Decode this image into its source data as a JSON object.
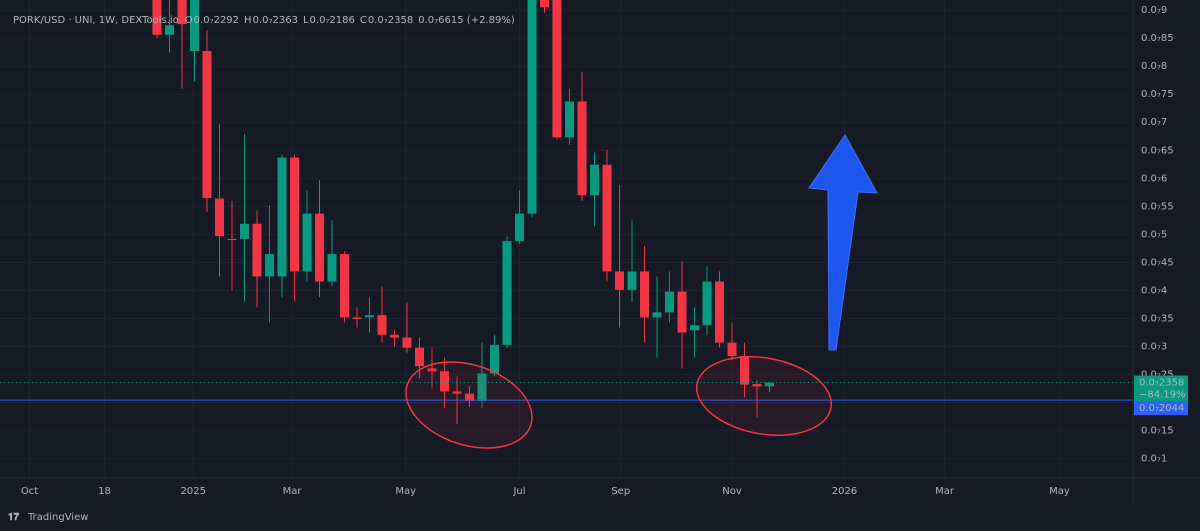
{
  "chart_data": {
    "type": "candlestick",
    "header": {
      "symbol": "PORK/USD · UNI, 1W, DEXTools.io",
      "ohlc": [
        {
          "key": "O",
          "text": "0.0₇2292"
        },
        {
          "key": "H",
          "text": "0.0₇2363"
        },
        {
          "key": "L",
          "text": "0.0₇2186"
        },
        {
          "key": "C",
          "text": "0.0₇2358"
        }
      ],
      "change": "0.0₇6615 (+2.89%)"
    },
    "up_color": "#089981",
    "down_color": "#f23645",
    "open": [
      9.3e-08,
      8.56e-08,
      9.4e-08,
      8.27e-08,
      8.27e-08,
      5.64e-08,
      4.92e-08,
      4.92e-08,
      5.19e-08,
      4.25e-08,
      4.25e-08,
      6.37e-08,
      4.34e-08,
      5.37e-08,
      4.16e-08,
      4.65e-08,
      3.52e-08,
      3.52e-08,
      3.56e-08,
      3.21e-08,
      3.16e-08,
      2.98e-08,
      2.61e-08,
      2.56e-08,
      2.2e-08,
      2.16e-08,
      2.03e-08,
      2.52e-08,
      3.03e-08,
      4.88e-08,
      5.37e-08,
      9.4e-08,
      9.3e-08,
      6.73e-08,
      7.37e-08,
      5.7e-08,
      6.24e-08,
      4.34e-08,
      4.01e-08,
      4.34e-08,
      3.52e-08,
      3.61e-08,
      3.98e-08,
      3.29e-08,
      3.38e-08,
      4.16e-08,
      3.07e-08,
      2.83e-08,
      2.33e-08,
      2.292e-08
    ],
    "high": [
      9.5e-08,
      9.2e-08,
      9.6e-08,
      9.5e-08,
      8.64e-08,
      6.97e-08,
      5.6e-08,
      6.79e-08,
      5.43e-08,
      5.52e-08,
      6.42e-08,
      6.42e-08,
      5.79e-08,
      5.97e-08,
      5.25e-08,
      4.7e-08,
      3.7e-08,
      3.88e-08,
      4.07e-08,
      3.3e-08,
      3.79e-08,
      3.16e-08,
      2.98e-08,
      2.8e-08,
      2.47e-08,
      2.3e-08,
      3.07e-08,
      3.21e-08,
      4.97e-08,
      5.79e-08,
      9.6e-08,
      9.6e-08,
      9.5e-08,
      7.6e-08,
      7.9e-08,
      6.46e-08,
      6.51e-08,
      5.88e-08,
      5.25e-08,
      4.79e-08,
      4.25e-08,
      4.34e-08,
      4.52e-08,
      3.7e-08,
      4.43e-08,
      4.34e-08,
      3.43e-08,
      3.07e-08,
      2.4e-08,
      2.363e-08
    ],
    "low": [
      8.5e-08,
      8.24e-08,
      7.6e-08,
      7.73e-08,
      5.4e-08,
      4.25e-08,
      4e-08,
      3.8e-08,
      3.7e-08,
      3.43e-08,
      3.88e-08,
      3.8e-08,
      4.16e-08,
      3.88e-08,
      4.07e-08,
      3.43e-08,
      3.34e-08,
      3.25e-08,
      3.07e-08,
      3e-08,
      2.89e-08,
      2.43e-08,
      2.25e-08,
      1.9e-08,
      1.62e-08,
      1.92e-08,
      1.9e-08,
      2.47e-08,
      2.98e-08,
      4.83e-08,
      5.3e-08,
      8.95e-08,
      6.7e-08,
      6.6e-08,
      5.6e-08,
      5.15e-08,
      4.16e-08,
      3.34e-08,
      3.8e-08,
      3.07e-08,
      2.8e-08,
      3.43e-08,
      2.61e-08,
      2.8e-08,
      3.2e-08,
      2.98e-08,
      2.76e-08,
      2.1e-08,
      1.74e-08,
      2.186e-08
    ],
    "close": [
      8.56e-08,
      8.73e-08,
      8.75e-08,
      9.2e-08,
      5.65e-08,
      4.97e-08,
      4.9e-08,
      5.19e-08,
      4.25e-08,
      4.65e-08,
      6.37e-08,
      4.34e-08,
      5.37e-08,
      4.16e-08,
      4.65e-08,
      3.52e-08,
      3.49e-08,
      3.56e-08,
      3.21e-08,
      3.16e-08,
      2.98e-08,
      2.65e-08,
      2.56e-08,
      2.2e-08,
      2.16e-08,
      2.03e-08,
      2.52e-08,
      3.03e-08,
      4.88e-08,
      5.37e-08,
      9.3e-08,
      9.05e-08,
      6.73e-08,
      7.37e-08,
      5.7e-08,
      6.24e-08,
      4.34e-08,
      4.01e-08,
      4.34e-08,
      3.52e-08,
      3.61e-08,
      3.98e-08,
      3.25e-08,
      3.38e-08,
      4.16e-08,
      3.07e-08,
      2.83e-08,
      2.32e-08,
      2.29e-08,
      2.358e-08
    ],
    "xlim": [
      -12.56,
      78.08
    ],
    "xticks": [
      {
        "value": -10.2,
        "label": "Oct"
      },
      {
        "value": -4.2,
        "label": "18"
      },
      {
        "value": 2.9,
        "label": "2025"
      },
      {
        "value": 10.8,
        "label": "Mar"
      },
      {
        "value": 19.9,
        "label": "May"
      },
      {
        "value": 29.0,
        "label": "Jul"
      },
      {
        "value": 37.1,
        "label": "Sep"
      },
      {
        "value": 46.0,
        "label": "Nov"
      },
      {
        "value": 55.0,
        "label": "2026"
      },
      {
        "value": 63.0,
        "label": "Mar"
      },
      {
        "value": 72.2,
        "label": "May"
      }
    ],
    "ylim": [
      6.56e-09,
      9.18e-08
    ],
    "yticks": [
      {
        "value": 9e-08,
        "label": "0.0₇9"
      },
      {
        "value": 8.5e-08,
        "label": "0.0₇85"
      },
      {
        "value": 8e-08,
        "label": "0.0₇8"
      },
      {
        "value": 7.5e-08,
        "label": "0.0₇75"
      },
      {
        "value": 7e-08,
        "label": "0.0₇7"
      },
      {
        "value": 6.5e-08,
        "label": "0.0₇65"
      },
      {
        "value": 6e-08,
        "label": "0.0₇6"
      },
      {
        "value": 5.5e-08,
        "label": "0.0₇55"
      },
      {
        "value": 5e-08,
        "label": "0.0₇5"
      },
      {
        "value": 4.5e-08,
        "label": "0.0₇45"
      },
      {
        "value": 4e-08,
        "label": "0.0₇4"
      },
      {
        "value": 3.5e-08,
        "label": "0.0₇35"
      },
      {
        "value": 3e-08,
        "label": "0.0₇3"
      },
      {
        "value": 2.5e-08,
        "label": "0.0₇25"
      },
      {
        "value": 2e-08,
        "label": "0.0₇2"
      },
      {
        "value": 1.5e-08,
        "label": "0.0₇15"
      },
      {
        "value": 1e-08,
        "label": "0.0₇1"
      }
    ],
    "grid": true,
    "last_price": {
      "value": 2.358e-08,
      "label": "0.0₇2358",
      "change": "−84.19%"
    },
    "hline": {
      "value": 2.044e-08,
      "label": "0.0₇2044",
      "color": "#2962ff"
    },
    "branding": "TradingView"
  }
}
